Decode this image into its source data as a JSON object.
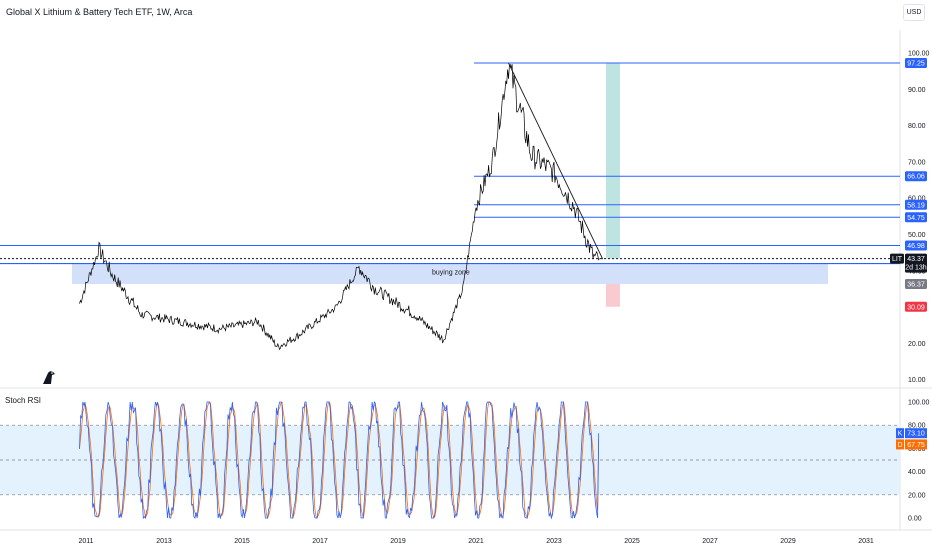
{
  "header": {
    "title": "Global X Lithium & Battery Tech ETF, 1W, Arca",
    "currency_button": "USD"
  },
  "colors": {
    "price_line": "#000000",
    "hline_blue": "#2962ff",
    "zone_fill": "#c8d8f8",
    "zone_text": "#2962ff",
    "target_green": "#b2dfdb",
    "stop_red": "#f8c5cc",
    "k_line": "#2962ff",
    "d_line": "#ff6d00",
    "rsi_band": "#e3f2fd"
  },
  "main_axis": {
    "ticks": [
      "100.00",
      "90.00",
      "80.00",
      "70.00",
      "60.00",
      "50.00",
      "40.00",
      "30.00",
      "20.00",
      "10.00"
    ],
    "price_min": 10,
    "price_max": 100
  },
  "price_tags": [
    {
      "label": "97.25",
      "value": 97.25,
      "color": "#2962ff"
    },
    {
      "label": "66.06",
      "value": 66.06,
      "color": "#2962ff"
    },
    {
      "label": "58.19",
      "value": 58.19,
      "color": "#2962ff"
    },
    {
      "label": "54.75",
      "value": 54.75,
      "color": "#2962ff"
    },
    {
      "label": "46.98",
      "value": 46.98,
      "color": "#2962ff"
    },
    {
      "label": "36.37",
      "value": 36.37,
      "color": "#787b86"
    },
    {
      "label": "30.09",
      "value": 30.09,
      "color": "#f23645"
    }
  ],
  "current_price": {
    "symbol": "LIT",
    "price": "43.37",
    "countdown": "2d 13h",
    "value": 43.37
  },
  "buying_zone": {
    "label": "buying zone",
    "low": 36.37,
    "high": 42.0
  },
  "x_axis": {
    "labels": [
      "2011",
      "2013",
      "2015",
      "2017",
      "2019",
      "2021",
      "2023",
      "2025",
      "2027",
      "2029",
      "2031"
    ]
  },
  "stoch_rsi": {
    "title": "Stoch RSI",
    "ticks": [
      "100.00",
      "80.00",
      "60.00",
      "40.00",
      "20.00",
      "0.00"
    ],
    "k_tag": {
      "letter": "K",
      "value": "73.10"
    },
    "d_tag": {
      "letter": "D",
      "value": "67.75"
    },
    "upper_band": 80,
    "mid_band": 50,
    "lower_band": 20
  },
  "chart_data": {
    "type": "line",
    "x": [
      "2010-11",
      "2011-05",
      "2011-09",
      "2012-06",
      "2013-06",
      "2014-06",
      "2015-06",
      "2015-12",
      "2016-06",
      "2017-06",
      "2018-01",
      "2018-06",
      "2019-06",
      "2020-03",
      "2020-09",
      "2021-01",
      "2021-06",
      "2021-11",
      "2022-06",
      "2023-01",
      "2023-07",
      "2024-01",
      "2024-03"
    ],
    "series": [
      {
        "values": [
          31,
          46,
          39,
          28,
          26,
          24,
          26,
          19,
          22,
          30,
          41,
          35,
          28,
          21,
          35,
          58,
          70,
          97,
          72,
          67,
          58,
          44,
          43.37
        ]
      }
    ],
    "ylim": [
      10,
      100
    ]
  }
}
